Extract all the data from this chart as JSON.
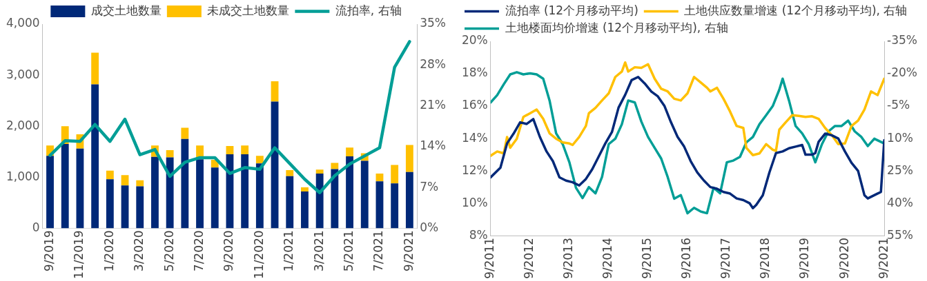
{
  "chart_data": [
    {
      "type": "bar",
      "stacked": true,
      "legend": "top",
      "grid": false,
      "marker": "none",
      "categories": [
        "9/2019",
        null,
        "11/2019",
        null,
        "1/2020",
        null,
        "3/2020",
        null,
        "5/2020",
        null,
        "7/2020",
        null,
        "9/2020",
        null,
        "11/2020",
        null,
        "1/2021",
        null,
        "3/2021",
        null,
        "5/2021",
        null,
        "7/2021",
        null,
        "9/2021"
      ],
      "ylim": [
        0,
        4000
      ],
      "yticks": [
        {
          "value": 0,
          "label": "0"
        },
        {
          "value": 1000,
          "label": "1,000"
        },
        {
          "value": 2000,
          "label": "2,000"
        },
        {
          "value": 3000,
          "label": "3,000"
        },
        {
          "value": 4000,
          "label": "4,000"
        }
      ],
      "y2lim": [
        0,
        35
      ],
      "y2ticks": [
        {
          "value": 0,
          "label": "0%"
        },
        {
          "value": 7,
          "label": "7%"
        },
        {
          "value": 14,
          "label": "14%"
        },
        {
          "value": 21,
          "label": "21%"
        },
        {
          "value": 28,
          "label": "28%"
        },
        {
          "value": 35,
          "label": "35%"
        }
      ],
      "series": [
        {
          "name": "成交土地数量",
          "color": "#002878",
          "values": [
            1420,
            1650,
            1560,
            2820,
            960,
            840,
            820,
            1400,
            1390,
            1750,
            1350,
            1190,
            1450,
            1450,
            1270,
            2480,
            1020,
            720,
            1070,
            1160,
            1410,
            1320,
            920,
            880,
            1100
          ]
        },
        {
          "name": "未成交土地数量",
          "color": "#ffc000",
          "values": [
            200,
            350,
            280,
            620,
            170,
            200,
            120,
            220,
            140,
            220,
            270,
            150,
            160,
            170,
            150,
            400,
            120,
            80,
            80,
            120,
            170,
            150,
            150,
            360,
            530
          ]
        },
        {
          "name": "流拍率, 右轴",
          "type": "line",
          "axis": "y2",
          "color": "#009e96",
          "values": [
            12.5,
            15.0,
            14.9,
            17.8,
            14.9,
            18.7,
            12.6,
            13.5,
            8.9,
            11.3,
            12.1,
            12.1,
            9.4,
            10.4,
            10.1,
            13.8,
            11.1,
            8.4,
            6.1,
            9.0,
            11.0,
            12.4,
            13.8,
            27.6,
            32.0
          ]
        }
      ]
    },
    {
      "type": "line",
      "legend": "top left",
      "grid": false,
      "marker": "none",
      "line_style": "solid",
      "xlim": [
        "2011-09",
        "2021-09"
      ],
      "xticks": [
        {
          "value": "2011-09",
          "label": "9/2011"
        },
        {
          "value": "2012-09",
          "label": "9/2012"
        },
        {
          "value": "2013-09",
          "label": "9/2013"
        },
        {
          "value": "2014-09",
          "label": "9/2014"
        },
        {
          "value": "2015-09",
          "label": "9/2015"
        },
        {
          "value": "2016-09",
          "label": "9/2016"
        },
        {
          "value": "2017-09",
          "label": "9/2017"
        },
        {
          "value": "2018-09",
          "label": "9/2018"
        },
        {
          "value": "2019-09",
          "label": "9/2019"
        },
        {
          "value": "2020-09",
          "label": "9/2020"
        },
        {
          "value": "2021-09",
          "label": "9/2021"
        }
      ],
      "ylim": [
        8,
        20
      ],
      "yticks": [
        {
          "value": 8,
          "label": "8%"
        },
        {
          "value": 10,
          "label": "10%"
        },
        {
          "value": 12,
          "label": "12%"
        },
        {
          "value": 14,
          "label": "14%"
        },
        {
          "value": 16,
          "label": "16%"
        },
        {
          "value": 18,
          "label": "18%"
        },
        {
          "value": 20,
          "label": "20%"
        }
      ],
      "y2lim": [
        55,
        -35
      ],
      "y2ticks": [
        {
          "value": -35,
          "label": "-35%"
        },
        {
          "value": -20,
          "label": "-20%"
        },
        {
          "value": -5,
          "label": "-5%"
        },
        {
          "value": 10,
          "label": "10%"
        },
        {
          "value": 25,
          "label": "25%"
        },
        {
          "value": 40,
          "label": "40%"
        },
        {
          "value": 55,
          "label": "55%"
        }
      ],
      "series": [
        {
          "name": "流拍率 (12个月移动平均)",
          "color": "#002878",
          "x": [
            "2011-09",
            "2011-12",
            "2012-02",
            "2012-04",
            "2012-06",
            "2012-08",
            "2012-10",
            "2012-12",
            "2013-02",
            "2013-04",
            "2013-06",
            "2013-08",
            "2013-10",
            "2013-12",
            "2014-02",
            "2014-04",
            "2014-06",
            "2014-08",
            "2014-10",
            "2014-12",
            "2015-02",
            "2015-04",
            "2015-06",
            "2015-08",
            "2015-10",
            "2015-12",
            "2016-02",
            "2016-04",
            "2016-06",
            "2016-08",
            "2016-10",
            "2016-12",
            "2017-02",
            "2017-04",
            "2017-06",
            "2017-08",
            "2017-10",
            "2017-12",
            "2018-02",
            "2018-04",
            "2018-05",
            "2018-06",
            "2018-08",
            "2018-10",
            "2018-12",
            "2019-02",
            "2019-04",
            "2019-06",
            "2019-08",
            "2019-09",
            "2019-11",
            "2019-12",
            "2020-01",
            "2020-03",
            "2020-05",
            "2020-07",
            "2020-09",
            "2020-11",
            "2021-01",
            "2021-03",
            "2021-04",
            "2021-06",
            "2021-08",
            "2021-09"
          ],
          "values": [
            11.6,
            12.2,
            13.7,
            14.3,
            15.0,
            14.9,
            15.2,
            14.1,
            13.2,
            12.6,
            11.6,
            11.4,
            11.3,
            11.1,
            11.5,
            12.1,
            12.9,
            13.7,
            14.4,
            15.9,
            16.7,
            17.6,
            17.8,
            17.4,
            16.9,
            16.6,
            16.0,
            15.0,
            14.1,
            13.5,
            12.6,
            11.9,
            11.4,
            11.0,
            10.9,
            10.7,
            10.6,
            10.3,
            10.2,
            10.0,
            9.7,
            9.9,
            10.5,
            11.9,
            13.1,
            13.2,
            13.4,
            13.5,
            13.6,
            13.0,
            13.0,
            13.1,
            13.8,
            14.3,
            14.2,
            14.0,
            13.2,
            12.5,
            12.0,
            10.5,
            10.3,
            10.5,
            10.7,
            13.9
          ]
        },
        {
          "name": "土地供应数量增速 (12个月移动平均), 右轴",
          "axis": "y2",
          "color": "#ffc000",
          "x": [
            "2011-09",
            "2011-11",
            "2012-01",
            "2012-02",
            "2012-03",
            "2012-05",
            "2012-07",
            "2012-09",
            "2012-11",
            "2013-01",
            "2013-03",
            "2013-05",
            "2013-07",
            "2013-09",
            "2013-10",
            "2013-12",
            "2014-02",
            "2014-03",
            "2014-05",
            "2014-07",
            "2014-09",
            "2014-11",
            "2015-01",
            "2015-02",
            "2015-03",
            "2015-05",
            "2015-07",
            "2015-09",
            "2015-11",
            "2016-01",
            "2016-03",
            "2016-05",
            "2016-07",
            "2016-09",
            "2016-11",
            "2017-01",
            "2017-03",
            "2017-04",
            "2017-06",
            "2017-08",
            "2017-10",
            "2017-12",
            "2018-02",
            "2018-03",
            "2018-05",
            "2018-07",
            "2018-09",
            "2018-11",
            "2018-12",
            "2019-01",
            "2019-03",
            "2019-05",
            "2019-07",
            "2019-09",
            "2019-11",
            "2020-01",
            "2020-03",
            "2020-05",
            "2020-07",
            "2020-09",
            "2020-11",
            "2021-01",
            "2021-03",
            "2021-05",
            "2021-07",
            "2021-09"
          ],
          "values": [
            18.0,
            16.0,
            16.9,
            9.3,
            14.3,
            10.1,
            0.0,
            -1.7,
            -3.4,
            0.9,
            7.6,
            10.1,
            11.8,
            12.3,
            13.0,
            9.3,
            4.2,
            -1.7,
            -4.2,
            -7.6,
            -10.9,
            -18.5,
            -21.0,
            -25.2,
            -21.0,
            -23.0,
            -22.7,
            -24.4,
            -17.7,
            -13.0,
            -11.8,
            -8.4,
            -7.6,
            -10.9,
            -18.5,
            -16.0,
            -13.5,
            -11.8,
            -13.5,
            -8.4,
            -2.5,
            4.2,
            5.1,
            14.3,
            17.7,
            16.9,
            12.6,
            15.2,
            15.7,
            5.9,
            2.5,
            -0.8,
            -0.5,
            0.0,
            -0.3,
            0.9,
            5.1,
            8.4,
            12.6,
            12.3,
            4.2,
            1.7,
            -3.4,
            -11.8,
            -10.1,
            -17.7
          ]
        },
        {
          "name": "土地楼面均价增速 (12个月移动平均), 右轴",
          "axis": "y2",
          "color": "#009e96",
          "x": [
            "2011-09",
            "2011-11",
            "2012-01",
            "2012-03",
            "2012-05",
            "2012-07",
            "2012-09",
            "2012-11",
            "2013-01",
            "2013-03",
            "2013-05",
            "2013-07",
            "2013-09",
            "2013-11",
            "2014-01",
            "2014-03",
            "2014-05",
            "2014-07",
            "2014-09",
            "2014-11",
            "2015-01",
            "2015-03",
            "2015-05",
            "2015-07",
            "2015-09",
            "2015-11",
            "2016-01",
            "2016-03",
            "2016-05",
            "2016-07",
            "2016-09",
            "2016-11",
            "2017-01",
            "2017-03",
            "2017-05",
            "2017-07",
            "2017-09",
            "2017-11",
            "2018-01",
            "2018-03",
            "2018-05",
            "2018-07",
            "2018-09",
            "2018-11",
            "2019-01",
            "2019-02",
            "2019-04",
            "2019-06",
            "2019-08",
            "2019-10",
            "2019-12",
            "2020-02",
            "2020-04",
            "2020-06",
            "2020-08",
            "2020-10",
            "2020-12",
            "2021-02",
            "2021-04",
            "2021-06",
            "2021-09"
          ],
          "values": [
            -6.7,
            -10.1,
            -15.1,
            -19.7,
            -20.7,
            -19.7,
            -20.2,
            -19.7,
            -17.7,
            -7.6,
            7.6,
            12.6,
            21.0,
            32.8,
            37.6,
            32.5,
            35.4,
            27.8,
            12.6,
            10.1,
            3.4,
            -7.6,
            -6.7,
            2.2,
            9.3,
            14.3,
            19.3,
            27.8,
            37.9,
            36.2,
            44.6,
            42.1,
            43.8,
            44.6,
            32.8,
            35.4,
            21.0,
            20.2,
            18.5,
            11.8,
            9.3,
            3.4,
            -0.8,
            -5.0,
            -12.6,
            -17.7,
            -7.6,
            4.2,
            7.6,
            12.6,
            21.0,
            12.6,
            6.7,
            4.2,
            4.2,
            1.7,
            6.7,
            9.3,
            13.5,
            10.1,
            12.3
          ]
        }
      ]
    }
  ]
}
